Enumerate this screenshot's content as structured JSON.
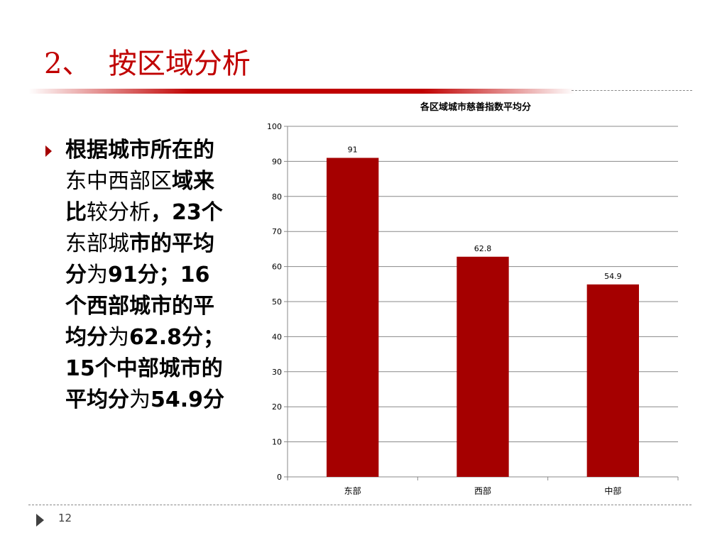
{
  "slide": {
    "title": "2、  按区域分析",
    "page_number": "12"
  },
  "bullet": {
    "parts": [
      {
        "text": "根据城市所在的",
        "bold": true
      },
      {
        "text": "东中西部区",
        "bold": false
      },
      {
        "text": "域来比",
        "bold": true
      },
      {
        "text": "较分析",
        "bold": false
      },
      {
        "text": "，23个",
        "bold": true
      },
      {
        "text": "东部城",
        "bold": false
      },
      {
        "text": "市的平均分",
        "bold": true
      },
      {
        "text": "为",
        "bold": false
      },
      {
        "text": "91分；16个西部城市的平均分",
        "bold": true
      },
      {
        "text": "为",
        "bold": false
      },
      {
        "text": "62.8分；15个中部城市的平均分",
        "bold": true
      },
      {
        "text": "为",
        "bold": false
      },
      {
        "text": "54.9分",
        "bold": true
      }
    ]
  },
  "chart_data": {
    "type": "bar",
    "title": "各区域城市慈善指数平均分",
    "categories": [
      "东部",
      "西部",
      "中部"
    ],
    "values": [
      91,
      62.8,
      54.9
    ],
    "data_labels": [
      "91",
      "62.8",
      "54.9"
    ],
    "ylim": [
      0,
      100
    ],
    "yticks": [
      0,
      10,
      20,
      30,
      40,
      50,
      60,
      70,
      80,
      90,
      100
    ],
    "grid": true,
    "xlabel": "",
    "ylabel": "",
    "bar_color": "#a50000"
  },
  "colors": {
    "accent": "#c00000",
    "bar": "#a50000"
  }
}
